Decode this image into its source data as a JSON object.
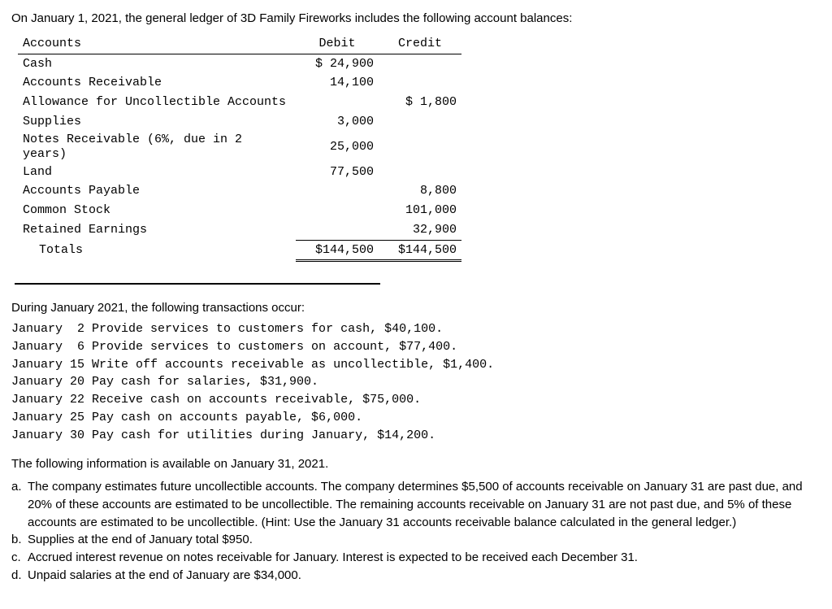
{
  "intro": "On January 1, 2021, the general ledger of 3D Family Fireworks includes the following account balances:",
  "table": {
    "headers": {
      "acct": "Accounts",
      "debit": "Debit",
      "credit": "Credit"
    },
    "rows": [
      {
        "acct": "Cash",
        "debit": "$ 24,900",
        "credit": ""
      },
      {
        "acct": "Accounts Receivable",
        "debit": "14,100",
        "credit": ""
      },
      {
        "acct": "Allowance for Uncollectible Accounts",
        "debit": "",
        "credit": "$  1,800"
      },
      {
        "acct": "Supplies",
        "debit": "3,000",
        "credit": ""
      },
      {
        "acct": "Notes Receivable (6%, due in 2 years)",
        "debit": "25,000",
        "credit": ""
      },
      {
        "acct": "Land",
        "debit": "77,500",
        "credit": ""
      },
      {
        "acct": "Accounts Payable",
        "debit": "",
        "credit": "8,800"
      },
      {
        "acct": "Common Stock",
        "debit": "",
        "credit": "101,000"
      },
      {
        "acct": "Retained Earnings",
        "debit": "",
        "credit": "32,900"
      }
    ],
    "totals": {
      "label": "Totals",
      "debit": "$144,500",
      "credit": "$144,500"
    }
  },
  "trans_intro": "During January 2021, the following transactions occur:",
  "transactions": [
    "January  2 Provide services to customers for cash, $40,100.",
    "January  6 Provide services to customers on account, $77,400.",
    "January 15 Write off accounts receivable as uncollectible, $1,400.",
    "January 20 Pay cash for salaries, $31,900.",
    "January 22 Receive cash on accounts receivable, $75,000.",
    "January 25 Pay cash on accounts payable, $6,000.",
    "January 30 Pay cash for utilities during January, $14,200."
  ],
  "info_intro": "The following information is available on January 31, 2021.",
  "notes": [
    {
      "lab": "a.",
      "txt": "The company estimates future uncollectible accounts. The company determines $5,500 of accounts receivable on January 31 are past due, and 20% of these accounts are estimated to be uncollectible. The remaining accounts receivable on January 31 are not past due, and 5% of these accounts are estimated to be uncollectible. (Hint: Use the January 31 accounts receivable balance calculated in the general ledger.)"
    },
    {
      "lab": "b.",
      "txt": "Supplies at the end of January total $950."
    },
    {
      "lab": "c.",
      "txt": "Accrued interest revenue on notes receivable for January. Interest is expected to be received each December 31."
    },
    {
      "lab": "d.",
      "txt": "Unpaid salaries at the end of January are $34,000."
    }
  ]
}
